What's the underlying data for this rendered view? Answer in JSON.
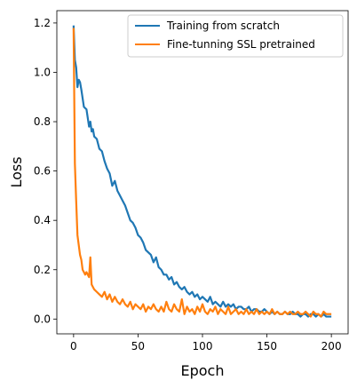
{
  "chart_data": {
    "type": "line",
    "title": "",
    "xlabel": "Epoch",
    "ylabel": "Loss",
    "xlim": [
      -13,
      213
    ],
    "ylim": [
      -0.06,
      1.25
    ],
    "xticks": [
      0,
      50,
      100,
      150,
      200
    ],
    "yticks": [
      0.0,
      0.2,
      0.4,
      0.6,
      0.8,
      1.0,
      1.2
    ],
    "grid": false,
    "legend_position": "top-right",
    "series": [
      {
        "name": "Training from scratch",
        "color": "#1f77b4",
        "x": [
          0,
          1,
          2,
          3,
          4,
          5,
          6,
          8,
          10,
          12,
          13,
          14,
          15,
          16,
          18,
          20,
          22,
          24,
          26,
          28,
          30,
          32,
          34,
          36,
          38,
          40,
          42,
          44,
          46,
          48,
          50,
          52,
          54,
          56,
          58,
          60,
          62,
          64,
          66,
          68,
          70,
          72,
          74,
          76,
          78,
          80,
          82,
          84,
          86,
          88,
          90,
          92,
          94,
          96,
          98,
          100,
          102,
          104,
          106,
          108,
          110,
          112,
          114,
          116,
          118,
          120,
          122,
          124,
          126,
          128,
          130,
          132,
          134,
          136,
          138,
          140,
          142,
          144,
          146,
          148,
          150,
          152,
          154,
          156,
          158,
          160,
          162,
          164,
          166,
          168,
          170,
          172,
          174,
          176,
          178,
          180,
          182,
          184,
          186,
          188,
          190,
          192,
          194,
          196,
          198,
          200
        ],
        "y": [
          1.19,
          1.05,
          1.02,
          0.94,
          0.97,
          0.96,
          0.93,
          0.86,
          0.85,
          0.78,
          0.8,
          0.76,
          0.77,
          0.74,
          0.73,
          0.69,
          0.68,
          0.64,
          0.61,
          0.59,
          0.54,
          0.56,
          0.52,
          0.5,
          0.48,
          0.46,
          0.43,
          0.4,
          0.39,
          0.37,
          0.34,
          0.33,
          0.31,
          0.28,
          0.27,
          0.26,
          0.23,
          0.25,
          0.21,
          0.2,
          0.18,
          0.18,
          0.16,
          0.17,
          0.14,
          0.15,
          0.13,
          0.12,
          0.13,
          0.11,
          0.1,
          0.11,
          0.09,
          0.1,
          0.08,
          0.09,
          0.08,
          0.07,
          0.09,
          0.06,
          0.07,
          0.06,
          0.05,
          0.07,
          0.05,
          0.06,
          0.05,
          0.06,
          0.04,
          0.05,
          0.05,
          0.04,
          0.04,
          0.05,
          0.03,
          0.04,
          0.04,
          0.03,
          0.03,
          0.04,
          0.03,
          0.02,
          0.03,
          0.02,
          0.03,
          0.02,
          0.02,
          0.03,
          0.02,
          0.02,
          0.03,
          0.02,
          0.02,
          0.01,
          0.02,
          0.02,
          0.01,
          0.02,
          0.02,
          0.01,
          0.02,
          0.01,
          0.02,
          0.01,
          0.01,
          0.01
        ]
      },
      {
        "name": "Fine-tunning SSL pretrained",
        "color": "#ff7f0e",
        "x": [
          0,
          1,
          2,
          3,
          4,
          5,
          6,
          7,
          8,
          9,
          10,
          11,
          12,
          13,
          14,
          15,
          16,
          18,
          20,
          22,
          24,
          26,
          28,
          30,
          32,
          34,
          36,
          38,
          40,
          42,
          44,
          46,
          48,
          50,
          52,
          54,
          56,
          58,
          60,
          62,
          64,
          66,
          68,
          70,
          72,
          74,
          76,
          78,
          80,
          82,
          84,
          86,
          88,
          90,
          92,
          94,
          96,
          98,
          100,
          102,
          104,
          106,
          108,
          110,
          112,
          114,
          116,
          118,
          120,
          122,
          124,
          126,
          128,
          130,
          132,
          134,
          136,
          138,
          140,
          142,
          144,
          146,
          148,
          150,
          152,
          154,
          156,
          158,
          160,
          162,
          164,
          166,
          168,
          170,
          172,
          174,
          176,
          178,
          180,
          182,
          184,
          186,
          188,
          190,
          192,
          194,
          196,
          198,
          200
        ],
        "y": [
          1.18,
          0.63,
          0.48,
          0.34,
          0.3,
          0.26,
          0.24,
          0.2,
          0.19,
          0.18,
          0.19,
          0.18,
          0.17,
          0.25,
          0.14,
          0.13,
          0.12,
          0.11,
          0.1,
          0.09,
          0.11,
          0.08,
          0.1,
          0.07,
          0.09,
          0.07,
          0.06,
          0.08,
          0.06,
          0.05,
          0.07,
          0.04,
          0.06,
          0.05,
          0.04,
          0.06,
          0.03,
          0.05,
          0.04,
          0.06,
          0.04,
          0.03,
          0.05,
          0.03,
          0.07,
          0.04,
          0.03,
          0.06,
          0.04,
          0.03,
          0.08,
          0.02,
          0.05,
          0.03,
          0.04,
          0.02,
          0.05,
          0.03,
          0.06,
          0.03,
          0.02,
          0.04,
          0.03,
          0.05,
          0.02,
          0.04,
          0.03,
          0.02,
          0.05,
          0.02,
          0.03,
          0.04,
          0.02,
          0.03,
          0.02,
          0.04,
          0.02,
          0.03,
          0.02,
          0.04,
          0.02,
          0.03,
          0.02,
          0.03,
          0.02,
          0.04,
          0.02,
          0.03,
          0.02,
          0.02,
          0.03,
          0.02,
          0.03,
          0.02,
          0.02,
          0.03,
          0.02,
          0.02,
          0.03,
          0.02,
          0.01,
          0.03,
          0.02,
          0.02,
          0.01,
          0.03,
          0.02,
          0.02,
          0.02
        ]
      }
    ]
  }
}
